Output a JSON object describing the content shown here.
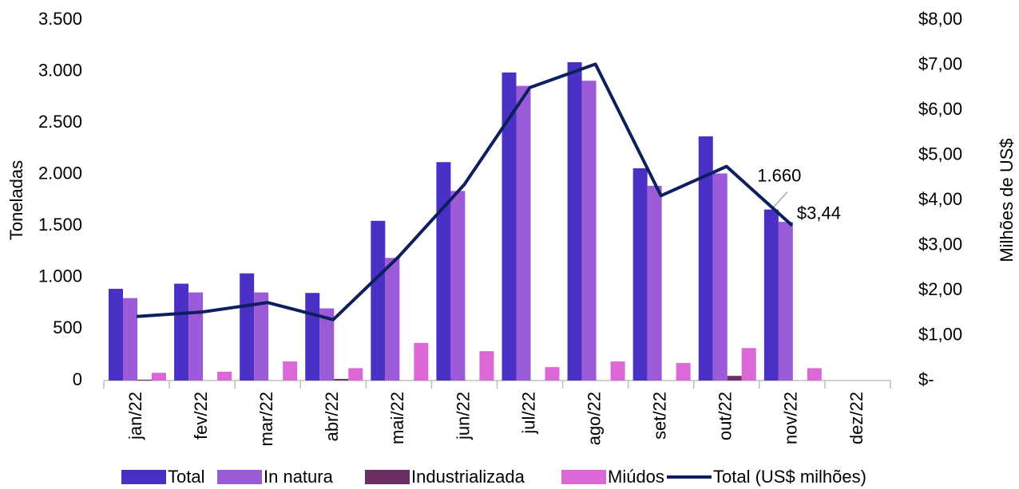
{
  "chart_data": {
    "type": "bar",
    "categories": [
      "jan/22",
      "fev/22",
      "mar/22",
      "abr/22",
      "mai/22",
      "jun/22",
      "jul/22",
      "ago/22",
      "set/22",
      "out/22",
      "nov/22",
      "dez/22"
    ],
    "series": [
      {
        "name": "Total",
        "color": "#4a30c4",
        "values": [
          890,
          940,
          1040,
          850,
          1550,
          2120,
          2990,
          3090,
          2060,
          2370,
          1660,
          null
        ],
        "value_labels": [
          null,
          null,
          null,
          null,
          null,
          null,
          null,
          null,
          null,
          null,
          "1.660",
          null
        ]
      },
      {
        "name": "In natura",
        "color": "#9b5bd8",
        "values": [
          800,
          855,
          855,
          700,
          1190,
          1840,
          2860,
          2910,
          1890,
          2010,
          1540,
          null
        ]
      },
      {
        "name": "Industrializada",
        "color": "#6a2e62",
        "values": [
          8,
          0,
          0,
          15,
          0,
          0,
          0,
          0,
          0,
          45,
          0,
          null
        ]
      },
      {
        "name": "Miúdos",
        "color": "#dc68d8",
        "values": [
          75,
          85,
          185,
          120,
          365,
          285,
          130,
          185,
          170,
          315,
          120,
          null
        ]
      },
      {
        "name": "Total (US$ milhões)",
        "type": "line",
        "axis": "y2",
        "color": "#0d1f5c",
        "values": [
          1.42,
          1.52,
          1.73,
          1.35,
          2.75,
          4.35,
          6.5,
          7.02,
          4.1,
          4.75,
          3.44,
          null
        ],
        "value_labels": [
          null,
          null,
          null,
          null,
          null,
          null,
          null,
          null,
          null,
          null,
          "$3,44",
          null
        ]
      }
    ],
    "y_label": "Toneladas",
    "y2_label": "Milhões de US$",
    "ylim": [
      0,
      3500
    ],
    "yticks": [
      0,
      {
        "value": 500,
        "label": "500"
      },
      {
        "value": 1000,
        "label": "1.000"
      },
      {
        "value": 1500,
        "label": "1.500"
      },
      {
        "value": 2000,
        "label": "2.000"
      },
      {
        "value": 2500,
        "label": "2.500"
      },
      {
        "value": 3000,
        "label": "3.000"
      },
      {
        "value": 3500,
        "label": "3.500"
      }
    ],
    "y2lim": [
      0,
      8
    ],
    "y2ticks": [
      {
        "value": 0,
        "label": "$-"
      },
      {
        "value": 1,
        "label": "$1,00"
      },
      {
        "value": 2,
        "label": "$2,00"
      },
      {
        "value": 3,
        "label": "$3,00"
      },
      {
        "value": 4,
        "label": "$4,00"
      },
      {
        "value": 5,
        "label": "$5,00"
      },
      {
        "value": 6,
        "label": "$6,00"
      },
      {
        "value": 7,
        "label": "$7,00"
      },
      {
        "value": 8,
        "label": "$8,00"
      }
    ],
    "grid": false,
    "legend": "bottom"
  }
}
